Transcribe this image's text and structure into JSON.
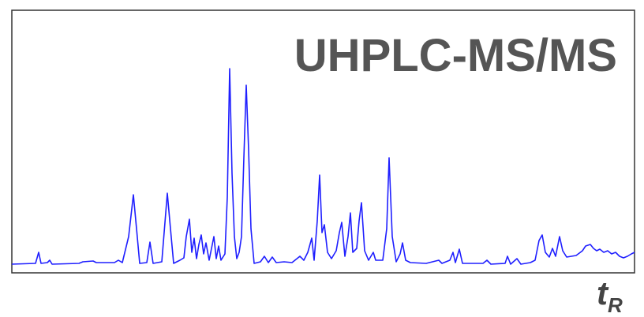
{
  "chart_data": {
    "type": "line",
    "title": "UHPLC-MS/MS",
    "x_label": {
      "text": "t",
      "subscript": "R"
    },
    "color": "#1f1fff",
    "xlim": [
      0,
      789
    ],
    "ylim": [
      0,
      333
    ],
    "x": [
      0,
      30,
      34,
      37,
      45,
      48,
      51,
      85,
      90,
      103,
      107,
      130,
      135,
      140,
      148,
      154,
      158,
      162,
      171,
      175,
      179,
      190,
      197,
      201,
      205,
      213,
      218,
      221,
      225,
      228,
      231,
      234,
      237,
      240,
      243,
      246,
      250,
      253,
      256,
      259,
      262,
      265,
      270,
      273,
      276,
      279,
      282,
      285,
      288,
      291,
      294,
      297,
      300,
      303,
      307,
      315,
      320,
      325,
      330,
      335,
      345,
      355,
      365,
      370,
      375,
      380,
      383,
      387,
      390,
      393,
      396,
      400,
      405,
      411,
      415,
      418,
      422,
      426,
      429,
      432,
      437,
      440,
      443,
      447,
      452,
      458,
      461,
      470,
      475,
      478,
      482,
      487,
      492,
      495,
      499,
      505,
      525,
      541,
      545,
      555,
      559,
      562,
      567,
      571,
      585,
      597,
      602,
      607,
      625,
      628,
      632,
      640,
      645,
      657,
      663,
      668,
      672,
      676,
      681,
      685,
      689,
      694,
      698,
      703,
      715,
      723,
      727,
      733,
      737,
      741,
      745,
      750,
      755,
      760,
      765,
      770,
      775,
      780,
      785,
      789
    ],
    "values": [
      11,
      12,
      26,
      12,
      13,
      16,
      11,
      12,
      14,
      15,
      13,
      13,
      16,
      13,
      46,
      99,
      56,
      12,
      13,
      39,
      12,
      14,
      101,
      56,
      12,
      16,
      19,
      46,
      68,
      26,
      44,
      18,
      36,
      48,
      24,
      38,
      16,
      31,
      46,
      18,
      34,
      16,
      24,
      96,
      259,
      126,
      46,
      18,
      26,
      46,
      146,
      238,
      156,
      56,
      12,
      14,
      21,
      13,
      20,
      13,
      14,
      13,
      21,
      16,
      26,
      44,
      16,
      66,
      124,
      51,
      61,
      26,
      18,
      28,
      51,
      64,
      21,
      46,
      76,
      26,
      31,
      66,
      89,
      28,
      16,
      26,
      16,
      16,
      56,
      146,
      46,
      14,
      24,
      38,
      16,
      13,
      12,
      16,
      12,
      16,
      26,
      13,
      30,
      12,
      12,
      12,
      16,
      11,
      12,
      21,
      11,
      18,
      11,
      13,
      16,
      41,
      48,
      26,
      20,
      31,
      21,
      46,
      28,
      20,
      22,
      28,
      34,
      36,
      31,
      28,
      30,
      26,
      28,
      24,
      26,
      21,
      19,
      21,
      24,
      26
    ]
  }
}
